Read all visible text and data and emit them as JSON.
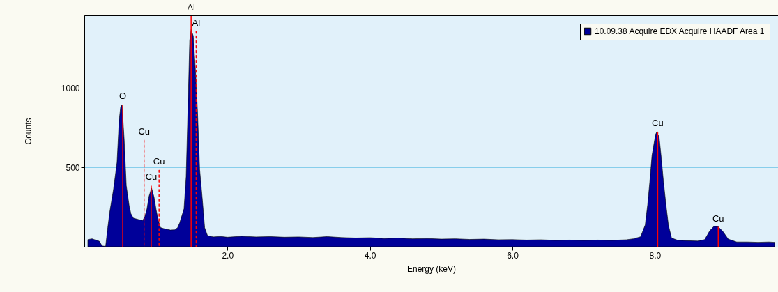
{
  "chart_data": {
    "type": "area",
    "xlabel": "Energy (keV)",
    "ylabel": "Counts",
    "xlim": [
      0.04,
      9.68
    ],
    "ylim": [
      0,
      1460
    ],
    "xticks": [
      {
        "value": 2,
        "label": "2.0"
      },
      {
        "value": 4,
        "label": "4.0"
      },
      {
        "value": 6,
        "label": "6.0"
      },
      {
        "value": 8,
        "label": "8.0"
      }
    ],
    "yticks": [
      500,
      1000
    ],
    "grid": "y",
    "legend": "top right",
    "series": [
      {
        "name": "10.09.38 Acquire EDX Acquire HAADF Area 1",
        "color": "#000099",
        "x": [
          0.04,
          0.1,
          0.15,
          0.2,
          0.24,
          0.29,
          0.32,
          0.35,
          0.4,
          0.45,
          0.48,
          0.5,
          0.52,
          0.55,
          0.58,
          0.62,
          0.645,
          0.68,
          0.75,
          0.81,
          0.84,
          0.87,
          0.9,
          0.935,
          0.97,
          1.0,
          1.03,
          1.06,
          1.1,
          1.15,
          1.2,
          1.26,
          1.3,
          1.33,
          1.39,
          1.42,
          1.45,
          1.47,
          1.49,
          1.52,
          1.55,
          1.58,
          1.61,
          1.645,
          1.68,
          1.72,
          1.8,
          1.9,
          2.0,
          2.2,
          2.4,
          2.6,
          2.8,
          3.0,
          3.2,
          3.4,
          3.6,
          3.8,
          4.0,
          4.2,
          4.4,
          4.6,
          4.8,
          5.0,
          5.2,
          5.4,
          5.6,
          5.8,
          6.0,
          6.2,
          6.4,
          6.6,
          6.8,
          7.0,
          7.2,
          7.4,
          7.6,
          7.7,
          7.8,
          7.865,
          7.9,
          7.93,
          7.96,
          8.01,
          8.026,
          8.06,
          8.09,
          8.12,
          8.155,
          8.19,
          8.235,
          8.32,
          8.45,
          8.6,
          8.7,
          8.77,
          8.83,
          8.89,
          8.96,
          9.03,
          9.15,
          9.3,
          9.45,
          9.6,
          9.68
        ],
        "values": [
          45,
          50,
          42,
          35,
          5,
          2,
          120,
          225,
          360,
          532,
          797,
          880,
          896,
          679,
          385,
          260,
          208,
          180,
          172,
          165,
          190,
          238,
          320,
          370,
          312,
          230,
          165,
          121,
          115,
          110,
          105,
          107,
          120,
          151,
          239,
          441,
          939,
          1300,
          1370,
          1330,
          1119,
          850,
          487,
          311,
          120,
          70,
          62,
          65,
          60,
          66,
          62,
          64,
          60,
          62,
          58,
          64,
          58,
          55,
          57,
          52,
          55,
          50,
          52,
          48,
          50,
          46,
          48,
          44,
          45,
          42,
          44,
          40,
          42,
          40,
          42,
          40,
          44,
          50,
          63,
          137,
          268,
          415,
          576,
          708,
          723,
          693,
          561,
          415,
          268,
          136,
          55,
          41,
          38,
          36,
          45,
          100,
          129,
          126,
          93,
          48,
          30,
          30,
          28,
          30,
          28
        ]
      },
      {
        "type": "bar",
        "line_style": "solid",
        "color": "#ff0000",
        "x": [
          0.53,
          0.93,
          1.49,
          8.04,
          8.89
        ],
        "values": [
          896,
          385,
          1456,
          726,
          125
        ]
      },
      {
        "type": "bar",
        "line_style": "dashed",
        "color": "#ff0000",
        "x": [
          0.83,
          1.04,
          1.56
        ],
        "values": [
          674,
          484,
          1361
        ]
      }
    ],
    "annotations": [
      {
        "text": "O",
        "x": 0.53,
        "y": 896
      },
      {
        "text": "Cu",
        "x": 0.83,
        "y": 674
      },
      {
        "text": "Cu",
        "x": 0.93,
        "y": 385
      },
      {
        "text": "Cu",
        "x": 1.04,
        "y": 484
      },
      {
        "text": "Al",
        "x": 1.49,
        "y": 1456
      },
      {
        "text": "Al",
        "x": 1.56,
        "y": 1361
      },
      {
        "text": "Cu",
        "x": 8.04,
        "y": 726
      },
      {
        "text": "Cu",
        "x": 8.89,
        "y": 125
      }
    ]
  }
}
